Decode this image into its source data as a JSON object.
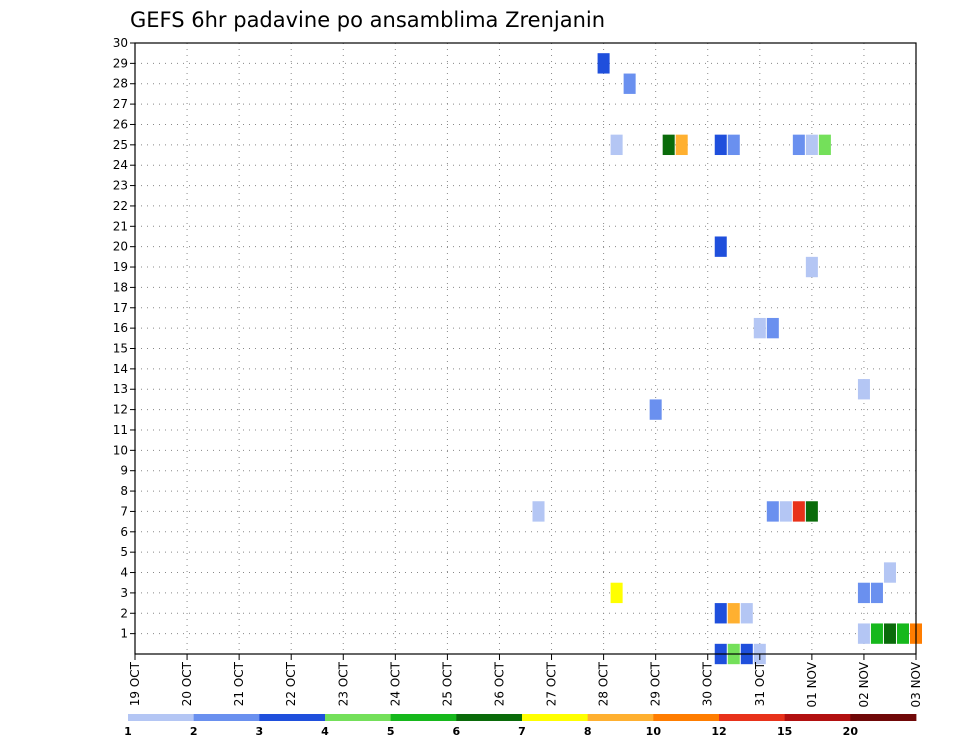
{
  "chart_data": {
    "type": "heatmap",
    "title": "GEFS 6hr padavine po ansamblima Zrenjanin",
    "xlabel": "",
    "ylabel": "",
    "x_tick_labels": [
      "19 OCT",
      "20 OCT",
      "21 OCT",
      "22 OCT",
      "23 OCT",
      "24 OCT",
      "25 OCT",
      "26 OCT",
      "27 OCT",
      "28 OCT",
      "29 OCT",
      "30 OCT",
      "31 OCT",
      "01 NOV",
      "02 NOV",
      "03 NOV"
    ],
    "y_tick_labels": [
      "1",
      "2",
      "3",
      "4",
      "5",
      "6",
      "7",
      "8",
      "9",
      "10",
      "11",
      "12",
      "13",
      "14",
      "15",
      "16",
      "17",
      "18",
      "19",
      "20",
      "21",
      "22",
      "23",
      "24",
      "25",
      "26",
      "27",
      "28",
      "29",
      "30"
    ],
    "ylim": [
      0,
      30
    ],
    "grid": true,
    "time_step": "6hr",
    "colorbar": {
      "labels": [
        "1",
        "2",
        "3",
        "4",
        "5",
        "6",
        "7",
        "8",
        "10",
        "12",
        "15",
        "20"
      ],
      "colors": [
        "#b4c6f4",
        "#6a90ef",
        "#1f4fdc",
        "#74e05a",
        "#16b81c",
        "#0a6b0a",
        "#ffff00",
        "#ffb030",
        "#ff7d00",
        "#e8321a",
        "#b21010",
        "#700808"
      ]
    },
    "cells": [
      {
        "member": 29,
        "time": "28 OCT 00Z",
        "value": 3
      },
      {
        "member": 28,
        "time": "28 OCT 12Z",
        "value": 2
      },
      {
        "member": 25,
        "time": "28 OCT 06Z",
        "value": 1
      },
      {
        "member": 25,
        "time": "29 OCT 06Z",
        "value": 6
      },
      {
        "member": 25,
        "time": "29 OCT 12Z",
        "value": 8
      },
      {
        "member": 25,
        "time": "30 OCT 06Z",
        "value": 3
      },
      {
        "member": 25,
        "time": "30 OCT 12Z",
        "value": 2
      },
      {
        "member": 25,
        "time": "31 OCT 18Z",
        "value": 2
      },
      {
        "member": 25,
        "time": "01 NOV 00Z",
        "value": 1
      },
      {
        "member": 25,
        "time": "01 NOV 06Z",
        "value": 4
      },
      {
        "member": 20,
        "time": "30 OCT 06Z",
        "value": 3
      },
      {
        "member": 19,
        "time": "01 NOV 00Z",
        "value": 1
      },
      {
        "member": 16,
        "time": "31 OCT 00Z",
        "value": 1
      },
      {
        "member": 16,
        "time": "31 OCT 06Z",
        "value": 2
      },
      {
        "member": 13,
        "time": "02 NOV 00Z",
        "value": 1
      },
      {
        "member": 12,
        "time": "29 OCT 00Z",
        "value": 2
      },
      {
        "member": 7,
        "time": "26 OCT 18Z",
        "value": 1
      },
      {
        "member": 7,
        "time": "31 OCT 06Z",
        "value": 2
      },
      {
        "member": 7,
        "time": "31 OCT 12Z",
        "value": 1
      },
      {
        "member": 7,
        "time": "31 OCT 18Z",
        "value": 12
      },
      {
        "member": 7,
        "time": "01 NOV 00Z",
        "value": 6
      },
      {
        "member": 4,
        "time": "02 NOV 12Z",
        "value": 1
      },
      {
        "member": 3,
        "time": "28 OCT 06Z",
        "value": 7
      },
      {
        "member": 3,
        "time": "02 NOV 00Z",
        "value": 2
      },
      {
        "member": 3,
        "time": "02 NOV 06Z",
        "value": 2
      },
      {
        "member": 2,
        "time": "30 OCT 06Z",
        "value": 3
      },
      {
        "member": 2,
        "time": "30 OCT 12Z",
        "value": 8
      },
      {
        "member": 2,
        "time": "30 OCT 18Z",
        "value": 1
      },
      {
        "member": 1,
        "time": "02 NOV 00Z",
        "value": 1
      },
      {
        "member": 1,
        "time": "02 NOV 06Z",
        "value": 5
      },
      {
        "member": 1,
        "time": "02 NOV 12Z",
        "value": 6
      },
      {
        "member": 1,
        "time": "02 NOV 18Z",
        "value": 5
      },
      {
        "member": 1,
        "time": "03 NOV 00Z",
        "value": 10
      },
      {
        "member": 0,
        "time": "30 OCT 06Z",
        "value": 3
      },
      {
        "member": 0,
        "time": "30 OCT 12Z",
        "value": 4
      },
      {
        "member": 0,
        "time": "30 OCT 18Z",
        "value": 3
      },
      {
        "member": 0,
        "time": "31 OCT 00Z",
        "value": 1
      }
    ]
  }
}
